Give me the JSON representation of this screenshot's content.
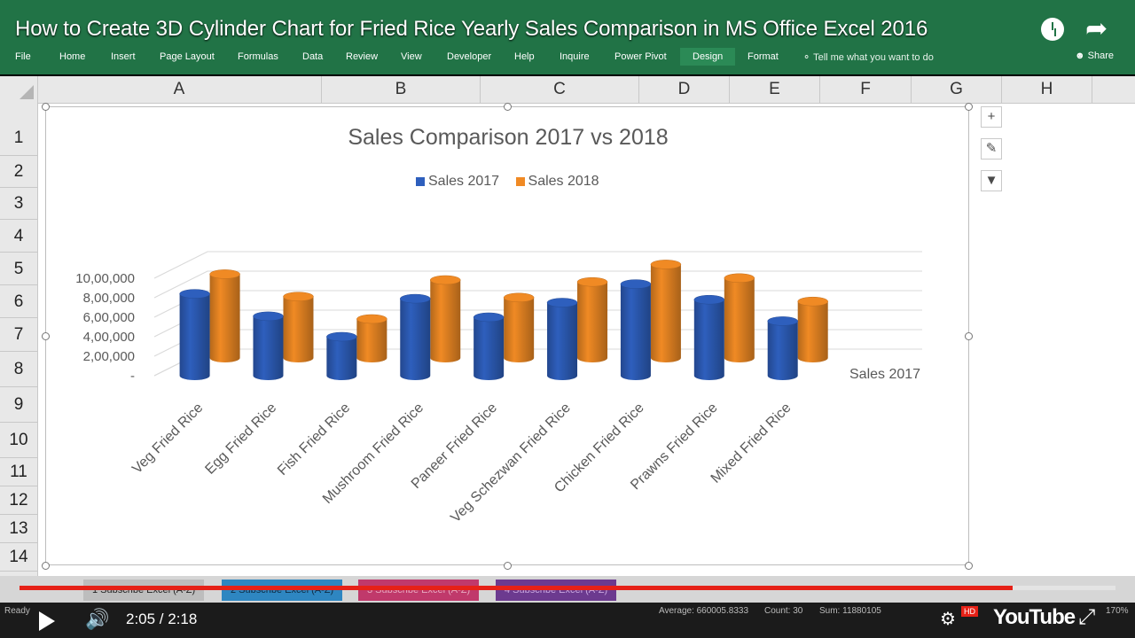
{
  "video": {
    "title": "How to Create 3D Cylinder Chart for Fried Rice Yearly Sales Comparison in MS Office Excel 2016",
    "current_time": "2:05",
    "duration": "2:18",
    "time_display": "2:05 / 2:18",
    "progress_fraction": 0.906,
    "logo": "YouTube",
    "hd_badge": "HD"
  },
  "ribbon": {
    "tabs": [
      "File",
      "Home",
      "Insert",
      "Page Layout",
      "Formulas",
      "Data",
      "Review",
      "View",
      "Developer",
      "Help",
      "Inquire",
      "Power Pivot",
      "Design",
      "Format"
    ],
    "active_tab": "Design",
    "tell_me": "Tell me what you want to do",
    "share": "Share"
  },
  "sheet": {
    "columns": [
      "A",
      "B",
      "C",
      "D",
      "E",
      "F",
      "G",
      "H"
    ],
    "rows": [
      "1",
      "2",
      "3",
      "4",
      "5",
      "6",
      "7",
      "8",
      "9",
      "10",
      "11",
      "12",
      "13",
      "14"
    ]
  },
  "chart_buttons": {
    "add": "+",
    "style": "✎",
    "filter": "▼"
  },
  "chart_data": {
    "type": "bar",
    "title": "Sales Comparison 2017 vs 2018",
    "categories": [
      "Veg Fried Rice",
      "Egg Fried Rice",
      "Fish Fried Rice",
      "Mushroom Fried Rice",
      "Paneer Fried Rice",
      "Veg Schezwan Fried Rice",
      "Chicken Fried Rice",
      "Prawns Fried Rice",
      "Mixed Fried Rice"
    ],
    "series": [
      {
        "name": "Sales 2017",
        "values": [
          840000,
          610000,
          400000,
          790000,
          600000,
          750000,
          940000,
          780000,
          560000
        ],
        "color": "#2e5fbd"
      },
      {
        "name": "Sales 2018",
        "values": [
          860000,
          630000,
          400000,
          800000,
          620000,
          780000,
          960000,
          820000,
          580000
        ],
        "color": "#f08a24"
      }
    ],
    "y_ticks": [
      "-",
      "2,00,000",
      "4,00,000",
      "6,00,000",
      "8,00,000",
      "10,00,000"
    ],
    "ylim": [
      0,
      1000000
    ],
    "depth_axis_label": "Sales 2017",
    "legend_position": "top"
  },
  "sheet_tabs": [
    "1 Subscribe Excel (A-Z)",
    "2 Subscribe Excel (A-Z)",
    "3 Subscribe Excel (A-Z)",
    "4 Subscribe Excel (A-Z)"
  ],
  "sheet_tab_colors": [
    "#bdbdbd",
    "#2e86c1",
    "#c0396b",
    "#6c3a8f"
  ],
  "status": {
    "ready": "Ready",
    "average": "Average: 660005.8333",
    "count": "Count: 30",
    "sum": "Sum: 11880105",
    "zoom": "170%"
  }
}
